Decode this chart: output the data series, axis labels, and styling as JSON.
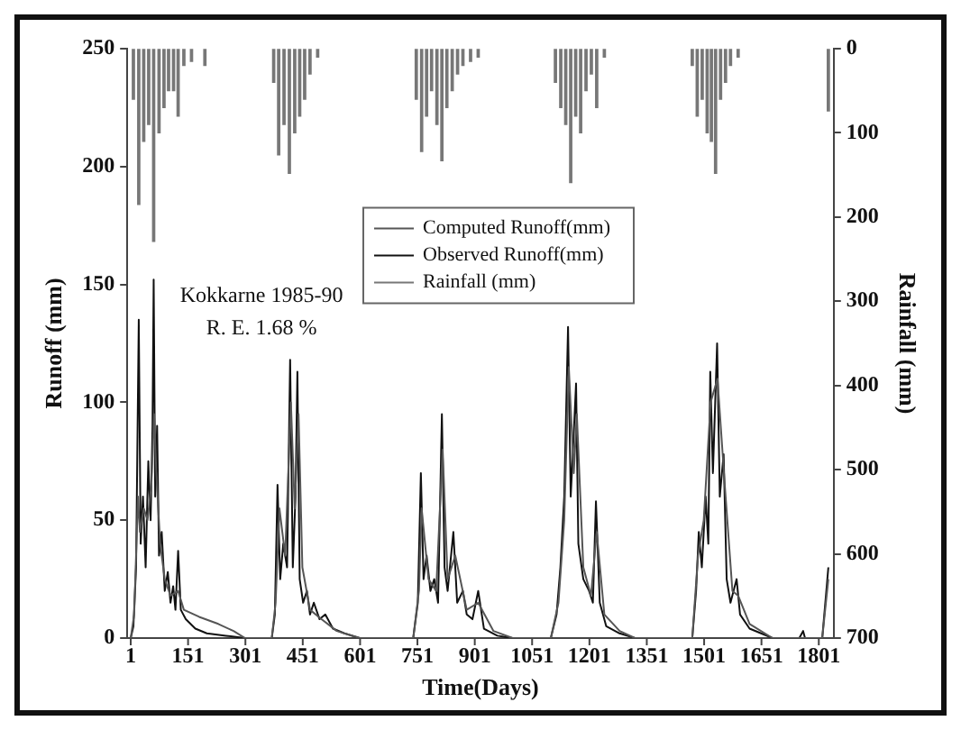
{
  "chart_data": {
    "type": "line",
    "xlabel": "Time(Days)",
    "ylabel": "Runoff (mm)",
    "y2label": "Rainfall (mm)",
    "annotations": [
      "Kokkarne 1985-90",
      "R. E. 1.68 %"
    ],
    "xlim": [
      -8,
      1840
    ],
    "xticks": [
      1,
      151,
      301,
      451,
      601,
      751,
      901,
      1051,
      1201,
      1351,
      1501,
      1651,
      1801
    ],
    "ylim": [
      0,
      250
    ],
    "yticks": [
      0,
      50,
      100,
      150,
      200,
      250
    ],
    "y2lim": [
      700,
      0
    ],
    "y2ticks": [
      0,
      100,
      200,
      300,
      400,
      500,
      600,
      700
    ],
    "grid": false,
    "legend": "top",
    "marker": "none",
    "line_style": "solid",
    "series": [
      {
        "name": "Computed Runoff(mm)",
        "color": "#555555",
        "x": [
          1,
          10,
          20,
          25,
          35,
          45,
          55,
          62,
          68,
          78,
          90,
          105,
          125,
          140,
          180,
          230,
          270,
          300,
          370,
          380,
          390,
          405,
          420,
          430,
          440,
          450,
          470,
          500,
          540,
          600,
          740,
          755,
          762,
          780,
          800,
          817,
          830,
          850,
          880,
          910,
          950,
          1000,
          1100,
          1120,
          1135,
          1147,
          1160,
          1168,
          1185,
          1205,
          1220,
          1240,
          1280,
          1320,
          1470,
          1485,
          1500,
          1518,
          1536,
          1555,
          1575,
          1590,
          1620,
          1680,
          1810,
          1826
        ],
        "values": [
          0,
          10,
          60,
          45,
          55,
          50,
          65,
          95,
          70,
          40,
          25,
          18,
          20,
          12,
          9,
          6,
          3,
          0,
          0,
          15,
          55,
          35,
          100,
          55,
          95,
          30,
          12,
          8,
          3,
          0,
          0,
          20,
          55,
          25,
          20,
          80,
          25,
          35,
          12,
          15,
          3,
          0,
          0,
          15,
          50,
          115,
          70,
          95,
          30,
          18,
          45,
          10,
          3,
          0,
          0,
          35,
          50,
          100,
          110,
          65,
          20,
          18,
          6,
          0,
          0,
          25
        ]
      },
      {
        "name": "Observed Runoff(mm)",
        "color": "#111111",
        "x": [
          1,
          8,
          15,
          22,
          27,
          33,
          40,
          47,
          53,
          58,
          61,
          65,
          70,
          75,
          82,
          90,
          98,
          105,
          112,
          118,
          125,
          132,
          145,
          170,
          200,
          250,
          300,
          370,
          378,
          385,
          392,
          400,
          410,
          418,
          425,
          432,
          437,
          443,
          452,
          462,
          470,
          480,
          495,
          510,
          530,
          560,
          600,
          740,
          752,
          760,
          767,
          775,
          785,
          795,
          805,
          815,
          822,
          830,
          845,
          855,
          870,
          880,
          895,
          910,
          925,
          960,
          1000,
          1100,
          1115,
          1125,
          1135,
          1145,
          1152,
          1158,
          1166,
          1172,
          1185,
          1200,
          1210,
          1218,
          1228,
          1245,
          1280,
          1320,
          1470,
          1480,
          1487,
          1495,
          1505,
          1512,
          1517,
          1524,
          1535,
          1542,
          1552,
          1560,
          1570,
          1586,
          1595,
          1620,
          1650,
          1680,
          1750,
          1760,
          1765,
          1810,
          1826
        ],
        "values": [
          0,
          5,
          30,
          135,
          40,
          60,
          30,
          75,
          50,
          90,
          152,
          60,
          90,
          35,
          45,
          20,
          28,
          15,
          22,
          12,
          37,
          12,
          8,
          4,
          2,
          1,
          0,
          0,
          10,
          65,
          25,
          40,
          30,
          118,
          30,
          60,
          113,
          25,
          15,
          20,
          10,
          15,
          8,
          10,
          4,
          2,
          0,
          0,
          15,
          70,
          25,
          35,
          20,
          25,
          15,
          95,
          30,
          20,
          45,
          15,
          20,
          10,
          8,
          20,
          4,
          1,
          0,
          0,
          10,
          30,
          60,
          132,
          60,
          80,
          108,
          40,
          25,
          20,
          15,
          58,
          15,
          5,
          2,
          0,
          0,
          20,
          45,
          30,
          60,
          40,
          113,
          70,
          125,
          60,
          78,
          25,
          15,
          25,
          10,
          4,
          2,
          0,
          0,
          3,
          0,
          0,
          30
        ]
      },
      {
        "name": "Rainfall (mm)",
        "type": "bar",
        "axis": "y2",
        "color": "#777777",
        "x": [
          8,
          22,
          35,
          48,
          61,
          75,
          88,
          100,
          113,
          125,
          140,
          160,
          195,
          375,
          388,
          402,
          416,
          430,
          443,
          456,
          470,
          490,
          748,
          762,
          775,
          788,
          802,
          815,
          828,
          842,
          856,
          870,
          890,
          910,
          1112,
          1126,
          1139,
          1152,
          1165,
          1178,
          1192,
          1206,
          1220,
          1240,
          1470,
          1483,
          1496,
          1509,
          1520,
          1531,
          1544,
          1557,
          1570,
          1590,
          1826
        ],
        "values": [
          60,
          185,
          110,
          90,
          229,
          100,
          70,
          50,
          50,
          80,
          20,
          15,
          20,
          40,
          126,
          90,
          148,
          100,
          80,
          60,
          30,
          10,
          60,
          122,
          80,
          50,
          90,
          133,
          70,
          50,
          30,
          20,
          15,
          10,
          40,
          70,
          90,
          159,
          80,
          100,
          50,
          30,
          70,
          10,
          20,
          80,
          60,
          100,
          110,
          148,
          60,
          40,
          20,
          10,
          74
        ]
      }
    ]
  }
}
